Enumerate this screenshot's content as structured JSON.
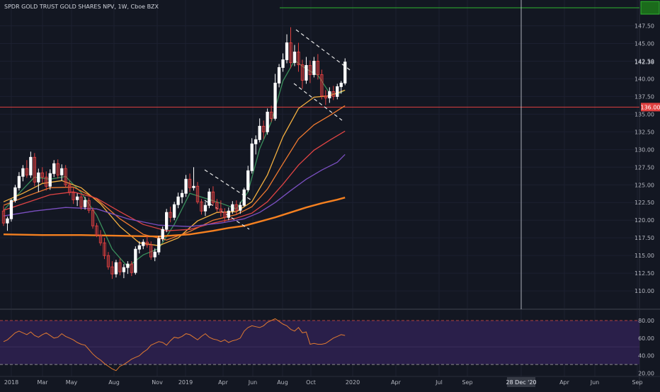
{
  "header": {
    "title": "SPDR GOLD TRUST GOLD SHARES NPV, 1W, Cboe BZX"
  },
  "colors": {
    "background": "#131722",
    "up": "#ffffff",
    "down": "#e04040",
    "ema_fast": "#3a8f5c",
    "ema_2": "#f5b040",
    "ema_3": "#f07a30",
    "ema_4": "#e04444",
    "ema_5": "#7a4fc0",
    "sma_long": "#f58020",
    "rsi_line": "#e07a30",
    "rsi_band": "#2a1f4a",
    "hline_top": "#2fb52f",
    "hline_mid": "#e04040",
    "crosshair": "#d1d4dc"
  },
  "chart_data": [
    {
      "type": "candlestick",
      "title": "SPDR GOLD TRUST GOLD SHARES NPV, 1W, Cboe BZX",
      "ylim": [
        107.5,
        150
      ],
      "y_ticks": [
        110.0,
        112.5,
        115.0,
        117.5,
        120.0,
        122.5,
        125.0,
        127.5,
        130.0,
        132.5,
        135.0,
        137.5,
        140.0,
        142.5,
        145.0,
        147.5
      ],
      "x_ticks": [
        "2018",
        "Mar",
        "May",
        "Aug",
        "Nov",
        "2019",
        "Apr",
        "Jun",
        "Aug",
        "Oct",
        "2020",
        "Apr",
        "Jul",
        "Sep",
        "Dec",
        "Apr",
        "Jun",
        "Sep"
      ],
      "last_price": "142.38",
      "horizontal_lines": [
        {
          "label": "136.00",
          "value": 136.0
        },
        {
          "label": "",
          "value": 150.0
        }
      ],
      "crosshair_date": "28 Dec '20",
      "ohlc": [
        [
          121.3,
          122.0,
          119.2,
          119.6
        ],
        [
          119.6,
          120.5,
          118.5,
          120.2
        ],
        [
          120.2,
          123.0,
          119.8,
          122.8
        ],
        [
          122.8,
          125.0,
          122.5,
          124.6
        ],
        [
          124.6,
          126.8,
          124.2,
          126.2
        ],
        [
          126.2,
          127.8,
          125.5,
          127.3
        ],
        [
          127.3,
          128.5,
          126.0,
          126.4
        ],
        [
          126.4,
          129.7,
          126.0,
          128.9
        ],
        [
          128.9,
          129.5,
          124.8,
          125.4
        ],
        [
          125.4,
          127.3,
          124.0,
          126.7
        ],
        [
          126.7,
          127.5,
          125.3,
          126.1
        ],
        [
          126.1,
          126.9,
          124.2,
          124.8
        ],
        [
          124.8,
          127.2,
          124.3,
          126.6
        ],
        [
          126.6,
          128.5,
          126.1,
          128.0
        ],
        [
          128.0,
          128.6,
          125.9,
          126.4
        ],
        [
          126.4,
          127.9,
          125.6,
          127.3
        ],
        [
          127.3,
          127.8,
          124.7,
          125.0
        ],
        [
          125.0,
          125.6,
          123.5,
          123.9
        ],
        [
          123.9,
          124.6,
          122.3,
          122.9
        ],
        [
          122.9,
          123.8,
          122.0,
          123.3
        ],
        [
          123.3,
          123.6,
          121.5,
          121.9
        ],
        [
          121.9,
          123.3,
          121.5,
          122.8
        ],
        [
          122.8,
          123.2,
          121.0,
          121.4
        ],
        [
          121.4,
          121.8,
          118.8,
          119.2
        ],
        [
          119.2,
          119.6,
          117.6,
          117.9
        ],
        [
          117.9,
          118.6,
          116.4,
          116.8
        ],
        [
          116.8,
          117.5,
          114.5,
          115.0
        ],
        [
          115.0,
          115.5,
          113.0,
          113.4
        ],
        [
          113.4,
          114.2,
          111.7,
          112.4
        ],
        [
          112.4,
          114.4,
          111.9,
          114.0
        ],
        [
          114.0,
          114.6,
          112.2,
          112.7
        ],
        [
          112.7,
          113.8,
          111.8,
          113.3
        ],
        [
          113.3,
          114.2,
          112.4,
          113.8
        ],
        [
          113.8,
          114.2,
          112.1,
          112.6
        ],
        [
          112.6,
          116.3,
          112.3,
          115.9
        ],
        [
          115.9,
          117.0,
          115.3,
          116.4
        ],
        [
          116.4,
          117.3,
          115.9,
          116.9
        ],
        [
          116.9,
          117.8,
          116.1,
          116.5
        ],
        [
          116.5,
          117.0,
          114.4,
          114.8
        ],
        [
          114.8,
          116.0,
          114.2,
          115.5
        ],
        [
          115.5,
          117.8,
          115.1,
          117.4
        ],
        [
          117.4,
          119.1,
          117.0,
          118.7
        ],
        [
          118.7,
          121.6,
          118.3,
          121.1
        ],
        [
          121.1,
          121.9,
          119.7,
          120.4
        ],
        [
          120.4,
          122.6,
          120.0,
          122.2
        ],
        [
          122.2,
          123.9,
          121.7,
          123.3
        ],
        [
          123.3,
          124.3,
          122.4,
          123.8
        ],
        [
          123.8,
          126.4,
          123.3,
          125.8
        ],
        [
          125.8,
          126.6,
          124.0,
          124.6
        ],
        [
          124.6,
          127.5,
          124.2,
          124.8
        ],
        [
          124.8,
          125.4,
          122.3,
          122.6
        ],
        [
          122.6,
          123.0,
          120.8,
          121.3
        ],
        [
          121.3,
          122.6,
          120.6,
          122.1
        ],
        [
          122.1,
          124.5,
          121.7,
          124.0
        ],
        [
          124.0,
          124.8,
          122.1,
          122.5
        ],
        [
          122.5,
          123.0,
          121.2,
          121.6
        ],
        [
          121.6,
          122.8,
          120.5,
          121.1
        ],
        [
          121.1,
          121.7,
          119.7,
          120.4
        ],
        [
          120.4,
          121.8,
          120.0,
          121.3
        ],
        [
          121.3,
          122.7,
          120.9,
          122.2
        ],
        [
          122.2,
          122.8,
          120.8,
          121.4
        ],
        [
          121.4,
          122.6,
          120.9,
          122.1
        ],
        [
          122.1,
          124.6,
          121.9,
          124.3
        ],
        [
          124.3,
          127.7,
          124.0,
          127.0
        ],
        [
          127.0,
          131.6,
          126.6,
          130.8
        ],
        [
          130.8,
          132.0,
          129.3,
          131.4
        ],
        [
          131.4,
          134.4,
          131.0,
          133.3
        ],
        [
          133.3,
          134.1,
          131.5,
          132.5
        ],
        [
          132.5,
          135.8,
          132.1,
          135.3
        ],
        [
          135.3,
          136.2,
          133.9,
          134.4
        ],
        [
          134.4,
          140.7,
          134.1,
          139.4
        ],
        [
          139.4,
          142.1,
          138.8,
          141.6
        ],
        [
          141.6,
          143.6,
          141.0,
          142.7
        ],
        [
          142.7,
          146.3,
          142.2,
          145.1
        ],
        [
          145.1,
          147.3,
          141.5,
          142.3
        ],
        [
          142.3,
          144.8,
          141.8,
          143.8
        ],
        [
          143.8,
          145.1,
          141.0,
          142.0
        ],
        [
          142.0,
          142.7,
          138.6,
          139.8
        ],
        [
          139.8,
          143.1,
          139.3,
          141.9
        ],
        [
          141.9,
          142.6,
          139.4,
          140.6
        ],
        [
          140.6,
          143.1,
          140.2,
          142.5
        ],
        [
          142.5,
          143.5,
          139.9,
          140.6
        ],
        [
          140.6,
          141.3,
          137.1,
          137.6
        ],
        [
          137.6,
          138.4,
          136.3,
          137.3
        ],
        [
          137.3,
          138.8,
          136.6,
          138.2
        ],
        [
          138.2,
          139.0,
          137.0,
          137.5
        ],
        [
          137.5,
          139.3,
          137.1,
          138.9
        ],
        [
          138.9,
          139.7,
          137.9,
          139.4
        ],
        [
          139.4,
          142.9,
          139.1,
          142.38
        ]
      ],
      "series": [
        {
          "name": "",
          "color": "#3a8f5c",
          "points": [
            [
              0,
              121.4
            ],
            [
              4,
              123.8
            ],
            [
              8,
              126.1
            ],
            [
              12,
              125.8
            ],
            [
              16,
              126.2
            ],
            [
              20,
              123.9
            ],
            [
              24,
              120.7
            ],
            [
              28,
              115.9
            ],
            [
              32,
              113.4
            ],
            [
              36,
              115.1
            ],
            [
              40,
              116.0
            ],
            [
              44,
              119.4
            ],
            [
              48,
              123.8
            ],
            [
              52,
              123.1
            ],
            [
              56,
              122.4
            ],
            [
              60,
              121.6
            ],
            [
              63,
              124.0
            ],
            [
              66,
              130.1
            ],
            [
              69,
              133.9
            ],
            [
              72,
              139.7
            ],
            [
              75,
              142.6
            ],
            [
              78,
              141.4
            ],
            [
              81,
              140.5
            ],
            [
              84,
              138.0
            ],
            [
              86,
              137.8
            ],
            [
              88,
              138.4
            ]
          ]
        },
        {
          "name": "",
          "color": "#f5b040",
          "points": [
            [
              0,
              122.6
            ],
            [
              5,
              123.8
            ],
            [
              10,
              125.2
            ],
            [
              15,
              125.6
            ],
            [
              20,
              124.6
            ],
            [
              25,
              122.3
            ],
            [
              30,
              119.1
            ],
            [
              35,
              116.8
            ],
            [
              40,
              116.4
            ],
            [
              45,
              117.5
            ],
            [
              50,
              119.9
            ],
            [
              55,
              121.1
            ],
            [
              60,
              121.2
            ],
            [
              64,
              122.6
            ],
            [
              68,
              126.4
            ],
            [
              72,
              131.8
            ],
            [
              76,
              135.8
            ],
            [
              80,
              137.4
            ],
            [
              84,
              137.6
            ],
            [
              88,
              138.4
            ]
          ]
        },
        {
          "name": "",
          "color": "#f07a30",
          "points": [
            [
              0,
              122.1
            ],
            [
              6,
              123.4
            ],
            [
              12,
              124.6
            ],
            [
              18,
              124.7
            ],
            [
              24,
              123.0
            ],
            [
              30,
              120.2
            ],
            [
              36,
              118.0
            ],
            [
              42,
              117.2
            ],
            [
              48,
              118.4
            ],
            [
              54,
              120.0
            ],
            [
              60,
              120.8
            ],
            [
              64,
              121.9
            ],
            [
              68,
              124.4
            ],
            [
              72,
              128.0
            ],
            [
              76,
              131.5
            ],
            [
              80,
              133.5
            ],
            [
              84,
              134.8
            ],
            [
              88,
              136.2
            ]
          ]
        },
        {
          "name": "",
          "color": "#e04444",
          "points": [
            [
              0,
              121.4
            ],
            [
              6,
              122.5
            ],
            [
              12,
              123.6
            ],
            [
              18,
              124.0
            ],
            [
              24,
              123.1
            ],
            [
              30,
              121.2
            ],
            [
              36,
              119.4
            ],
            [
              42,
              118.5
            ],
            [
              48,
              118.7
            ],
            [
              54,
              119.6
            ],
            [
              60,
              120.3
            ],
            [
              64,
              121.0
            ],
            [
              68,
              122.6
            ],
            [
              72,
              125.1
            ],
            [
              76,
              127.8
            ],
            [
              80,
              129.9
            ],
            [
              84,
              131.3
            ],
            [
              88,
              132.6
            ]
          ]
        },
        {
          "name": "",
          "color": "#7a4fc0",
          "points": [
            [
              0,
              120.6
            ],
            [
              8,
              121.3
            ],
            [
              16,
              121.8
            ],
            [
              24,
              121.6
            ],
            [
              32,
              120.2
            ],
            [
              40,
              119.3
            ],
            [
              48,
              119.1
            ],
            [
              56,
              119.6
            ],
            [
              62,
              120.2
            ],
            [
              66,
              121.1
            ],
            [
              70,
              122.5
            ],
            [
              74,
              124.2
            ],
            [
              78,
              125.8
            ],
            [
              82,
              127.1
            ],
            [
              86,
              128.2
            ],
            [
              88,
              129.3
            ]
          ]
        },
        {
          "name": "",
          "color": "#f58020",
          "points": [
            [
              0,
              118.0
            ],
            [
              10,
              117.9
            ],
            [
              20,
              117.9
            ],
            [
              30,
              117.8
            ],
            [
              40,
              117.7
            ],
            [
              48,
              118.0
            ],
            [
              54,
              118.5
            ],
            [
              58,
              118.9
            ],
            [
              62,
              119.2
            ],
            [
              66,
              119.8
            ],
            [
              70,
              120.4
            ],
            [
              74,
              121.1
            ],
            [
              78,
              121.8
            ],
            [
              82,
              122.4
            ],
            [
              86,
              122.9
            ],
            [
              88,
              123.2
            ]
          ]
        }
      ]
    },
    {
      "type": "line",
      "title": "",
      "ylim": [
        20,
        86
      ],
      "y_ticks": [
        20.0,
        40.0,
        60.0,
        80.0
      ],
      "band": [
        30,
        80
      ],
      "series": [
        {
          "name": "",
          "color": "#e07a30",
          "values": [
            56,
            58,
            62,
            66,
            68,
            66,
            64,
            67,
            63,
            61,
            64,
            66,
            63,
            60,
            61,
            65,
            62,
            60,
            58,
            55,
            53,
            52,
            47,
            42,
            38,
            35,
            31,
            28,
            25,
            23,
            28,
            30,
            33,
            36,
            38,
            40,
            44,
            47,
            52,
            54,
            56,
            55,
            52,
            57,
            61,
            60,
            62,
            65,
            64,
            61,
            58,
            62,
            65,
            61,
            59,
            58,
            56,
            58,
            55,
            57,
            58,
            60,
            68,
            72,
            74,
            73,
            72,
            74,
            78,
            80,
            82,
            79,
            76,
            74,
            70,
            68,
            72,
            66,
            67,
            53,
            54,
            53,
            53,
            54,
            57,
            60,
            62,
            64,
            63
          ]
        }
      ]
    }
  ]
}
